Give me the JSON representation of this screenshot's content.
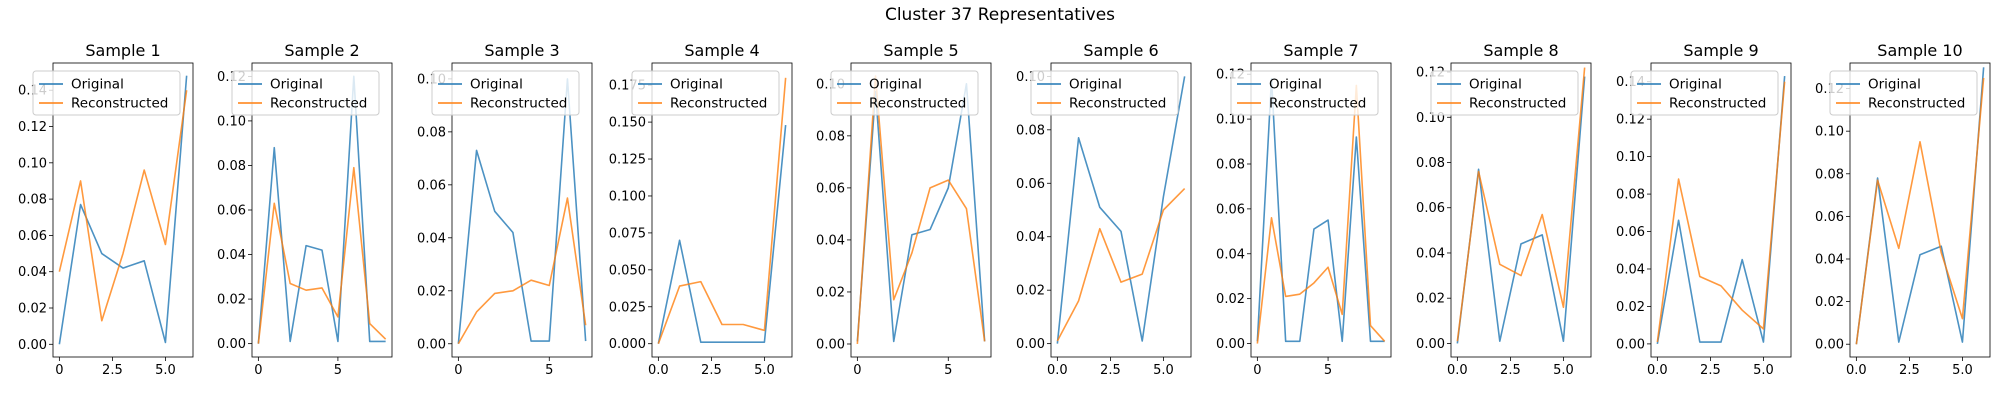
{
  "figure": {
    "suptitle": "Cluster 37 Representatives"
  },
  "colors": {
    "original": "#1f77b4",
    "reconstructed": "#ff7f0e"
  },
  "chart_data": [
    {
      "type": "line",
      "title": "Sample 1",
      "xlim": [
        -0.3,
        6.3
      ],
      "ylim": [
        -0.007,
        0.155
      ],
      "xticks": [
        0,
        2.5,
        5
      ],
      "xtick_labels": [
        "0",
        "2.5",
        "5.0"
      ],
      "yticks": [
        0,
        0.02,
        0.04,
        0.06,
        0.08,
        0.1,
        0.12,
        0.14
      ],
      "ytick_labels": [
        "0.00",
        "0.02",
        "0.04",
        "0.06",
        "0.08",
        "0.10",
        "0.12",
        "0.14"
      ],
      "series": [
        {
          "name": "Original",
          "x": [
            0,
            1,
            2,
            3,
            4,
            5,
            6
          ],
          "values": [
            0.0,
            0.077,
            0.05,
            0.042,
            0.046,
            0.001,
            0.148
          ]
        },
        {
          "name": "Reconstructed",
          "x": [
            0,
            1,
            2,
            3,
            4,
            5,
            6
          ],
          "values": [
            0.04,
            0.09,
            0.013,
            0.05,
            0.096,
            0.055,
            0.14
          ]
        }
      ]
    },
    {
      "type": "line",
      "title": "Sample 2",
      "xlim": [
        -0.4,
        8.4
      ],
      "ylim": [
        -0.006,
        0.126
      ],
      "xticks": [
        0,
        5
      ],
      "xtick_labels": [
        "0",
        "5"
      ],
      "yticks": [
        0,
        0.02,
        0.04,
        0.06,
        0.08,
        0.1,
        0.12
      ],
      "ytick_labels": [
        "0.00",
        "0.02",
        "0.04",
        "0.06",
        "0.08",
        "0.10",
        "0.12"
      ],
      "series": [
        {
          "name": "Original",
          "x": [
            0,
            1,
            2,
            3,
            4,
            5,
            6,
            7,
            8
          ],
          "values": [
            0.0,
            0.088,
            0.001,
            0.044,
            0.042,
            0.001,
            0.12,
            0.001,
            0.001
          ]
        },
        {
          "name": "Reconstructed",
          "x": [
            0,
            1,
            2,
            3,
            4,
            5,
            6,
            7,
            8
          ],
          "values": [
            0.0,
            0.063,
            0.027,
            0.024,
            0.025,
            0.012,
            0.079,
            0.009,
            0.002
          ]
        }
      ]
    },
    {
      "type": "line",
      "title": "Sample 3",
      "xlim": [
        -0.35,
        7.35
      ],
      "ylim": [
        -0.005,
        0.106
      ],
      "xticks": [
        0,
        5
      ],
      "xtick_labels": [
        "0",
        "5"
      ],
      "yticks": [
        0,
        0.02,
        0.04,
        0.06,
        0.08,
        0.1
      ],
      "ytick_labels": [
        "0.00",
        "0.02",
        "0.04",
        "0.06",
        "0.08",
        "0.10"
      ],
      "series": [
        {
          "name": "Original",
          "x": [
            0,
            1,
            2,
            3,
            4,
            5,
            6,
            7
          ],
          "values": [
            0.0,
            0.073,
            0.05,
            0.042,
            0.001,
            0.001,
            0.1,
            0.001
          ]
        },
        {
          "name": "Reconstructed",
          "x": [
            0,
            1,
            2,
            3,
            4,
            5,
            6,
            7
          ],
          "values": [
            0.0,
            0.012,
            0.019,
            0.02,
            0.024,
            0.022,
            0.055,
            0.007
          ]
        }
      ]
    },
    {
      "type": "line",
      "title": "Sample 4",
      "xlim": [
        -0.3,
        6.3
      ],
      "ylim": [
        -0.009,
        0.19
      ],
      "xticks": [
        0,
        2.5,
        5
      ],
      "xtick_labels": [
        "0.0",
        "2.5",
        "5.0"
      ],
      "yticks": [
        0,
        0.025,
        0.05,
        0.075,
        0.1,
        0.125,
        0.15,
        0.175
      ],
      "ytick_labels": [
        "0.000",
        "0.025",
        "0.050",
        "0.075",
        "0.100",
        "0.125",
        "0.150",
        "0.175"
      ],
      "series": [
        {
          "name": "Original",
          "x": [
            0,
            1,
            2,
            3,
            4,
            5,
            6
          ],
          "values": [
            0.0,
            0.07,
            0.001,
            0.001,
            0.001,
            0.001,
            0.148
          ]
        },
        {
          "name": "Reconstructed",
          "x": [
            0,
            1,
            2,
            3,
            4,
            5,
            6
          ],
          "values": [
            0.0,
            0.039,
            0.042,
            0.013,
            0.013,
            0.009,
            0.18
          ]
        }
      ]
    },
    {
      "type": "line",
      "title": "Sample 5",
      "xlim": [
        -0.35,
        7.35
      ],
      "ylim": [
        -0.005,
        0.108
      ],
      "xticks": [
        0,
        5
      ],
      "xtick_labels": [
        "0",
        "5"
      ],
      "yticks": [
        0,
        0.02,
        0.04,
        0.06,
        0.08,
        0.1
      ],
      "ytick_labels": [
        "0.00",
        "0.02",
        "0.04",
        "0.06",
        "0.08",
        "0.10"
      ],
      "series": [
        {
          "name": "Original",
          "x": [
            0,
            1,
            2,
            3,
            4,
            5,
            6,
            7
          ],
          "values": [
            0.001,
            0.097,
            0.001,
            0.042,
            0.044,
            0.06,
            0.1,
            0.001
          ]
        },
        {
          "name": "Reconstructed",
          "x": [
            0,
            1,
            2,
            3,
            4,
            5,
            6,
            7
          ],
          "values": [
            0.0,
            0.103,
            0.017,
            0.035,
            0.06,
            0.063,
            0.052,
            0.001
          ]
        }
      ]
    },
    {
      "type": "line",
      "title": "Sample 6",
      "xlim": [
        -0.3,
        6.3
      ],
      "ylim": [
        -0.005,
        0.105
      ],
      "xticks": [
        0,
        2.5,
        5
      ],
      "xtick_labels": [
        "0.0",
        "2.5",
        "5.0"
      ],
      "yticks": [
        0,
        0.02,
        0.04,
        0.06,
        0.08,
        0.1
      ],
      "ytick_labels": [
        "0.00",
        "0.02",
        "0.04",
        "0.06",
        "0.08",
        "0.10"
      ],
      "series": [
        {
          "name": "Original",
          "x": [
            0,
            1,
            2,
            3,
            4,
            5,
            6
          ],
          "values": [
            0.0,
            0.077,
            0.051,
            0.042,
            0.001,
            0.055,
            0.1
          ]
        },
        {
          "name": "Reconstructed",
          "x": [
            0,
            1,
            2,
            3,
            4,
            5,
            6
          ],
          "values": [
            0.001,
            0.016,
            0.043,
            0.023,
            0.026,
            0.05,
            0.058
          ]
        }
      ]
    },
    {
      "type": "line",
      "title": "Sample 7",
      "xlim": [
        -0.45,
        9.45
      ],
      "ylim": [
        -0.006,
        0.125
      ],
      "xticks": [
        0,
        5
      ],
      "xtick_labels": [
        "0",
        "5"
      ],
      "yticks": [
        0,
        0.02,
        0.04,
        0.06,
        0.08,
        0.1,
        0.12
      ],
      "ytick_labels": [
        "0.00",
        "0.02",
        "0.04",
        "0.06",
        "0.08",
        "0.10",
        "0.12"
      ],
      "series": [
        {
          "name": "Original",
          "x": [
            0,
            1,
            2,
            3,
            4,
            5,
            6,
            7,
            8,
            9
          ],
          "values": [
            0.001,
            0.118,
            0.001,
            0.001,
            0.051,
            0.055,
            0.001,
            0.092,
            0.001,
            0.001
          ]
        },
        {
          "name": "Reconstructed",
          "x": [
            0,
            1,
            2,
            3,
            4,
            5,
            6,
            7,
            8,
            9
          ],
          "values": [
            0.0,
            0.056,
            0.021,
            0.022,
            0.027,
            0.034,
            0.013,
            0.115,
            0.008,
            0.001
          ]
        }
      ]
    },
    {
      "type": "line",
      "title": "Sample 8",
      "xlim": [
        -0.3,
        6.3
      ],
      "ylim": [
        -0.006,
        0.124
      ],
      "xticks": [
        0,
        2.5,
        5
      ],
      "xtick_labels": [
        "0.0",
        "2.5",
        "5.0"
      ],
      "yticks": [
        0,
        0.02,
        0.04,
        0.06,
        0.08,
        0.1,
        0.12
      ],
      "ytick_labels": [
        "0.00",
        "0.02",
        "0.04",
        "0.06",
        "0.08",
        "0.10",
        "0.12"
      ],
      "series": [
        {
          "name": "Original",
          "x": [
            0,
            1,
            2,
            3,
            4,
            5,
            6
          ],
          "values": [
            0.0,
            0.077,
            0.001,
            0.044,
            0.048,
            0.001,
            0.118
          ]
        },
        {
          "name": "Reconstructed",
          "x": [
            0,
            1,
            2,
            3,
            4,
            5,
            6
          ],
          "values": [
            0.001,
            0.076,
            0.035,
            0.03,
            0.057,
            0.016,
            0.122
          ]
        }
      ]
    },
    {
      "type": "line",
      "title": "Sample 9",
      "xlim": [
        -0.3,
        6.3
      ],
      "ylim": [
        -0.007,
        0.15
      ],
      "xticks": [
        0,
        2.5,
        5
      ],
      "xtick_labels": [
        "0.0",
        "2.5",
        "5.0"
      ],
      "yticks": [
        0,
        0.02,
        0.04,
        0.06,
        0.08,
        0.1,
        0.12,
        0.14
      ],
      "ytick_labels": [
        "0.00",
        "0.02",
        "0.04",
        "0.06",
        "0.08",
        "0.10",
        "0.12",
        "0.14"
      ],
      "series": [
        {
          "name": "Original",
          "x": [
            0,
            1,
            2,
            3,
            4,
            5,
            6
          ],
          "values": [
            0.0,
            0.066,
            0.001,
            0.001,
            0.045,
            0.001,
            0.143
          ]
        },
        {
          "name": "Reconstructed",
          "x": [
            0,
            1,
            2,
            3,
            4,
            5,
            6
          ],
          "values": [
            0.001,
            0.088,
            0.036,
            0.031,
            0.018,
            0.008,
            0.14
          ]
        }
      ]
    },
    {
      "type": "line",
      "title": "Sample 10",
      "xlim": [
        -0.3,
        6.3
      ],
      "ylim": [
        -0.006,
        0.132
      ],
      "xticks": [
        0,
        2.5,
        5
      ],
      "xtick_labels": [
        "0.0",
        "2.5",
        "5.0"
      ],
      "yticks": [
        0,
        0.02,
        0.04,
        0.06,
        0.08,
        0.1,
        0.12
      ],
      "ytick_labels": [
        "0.00",
        "0.02",
        "0.04",
        "0.06",
        "0.08",
        "0.10",
        "0.12"
      ],
      "series": [
        {
          "name": "Original",
          "x": [
            0,
            1,
            2,
            3,
            4,
            5,
            6
          ],
          "values": [
            0.0,
            0.078,
            0.001,
            0.042,
            0.046,
            0.001,
            0.13
          ]
        },
        {
          "name": "Reconstructed",
          "x": [
            0,
            1,
            2,
            3,
            4,
            5,
            6
          ],
          "values": [
            0.0,
            0.077,
            0.045,
            0.095,
            0.043,
            0.012,
            0.125
          ]
        }
      ]
    }
  ]
}
